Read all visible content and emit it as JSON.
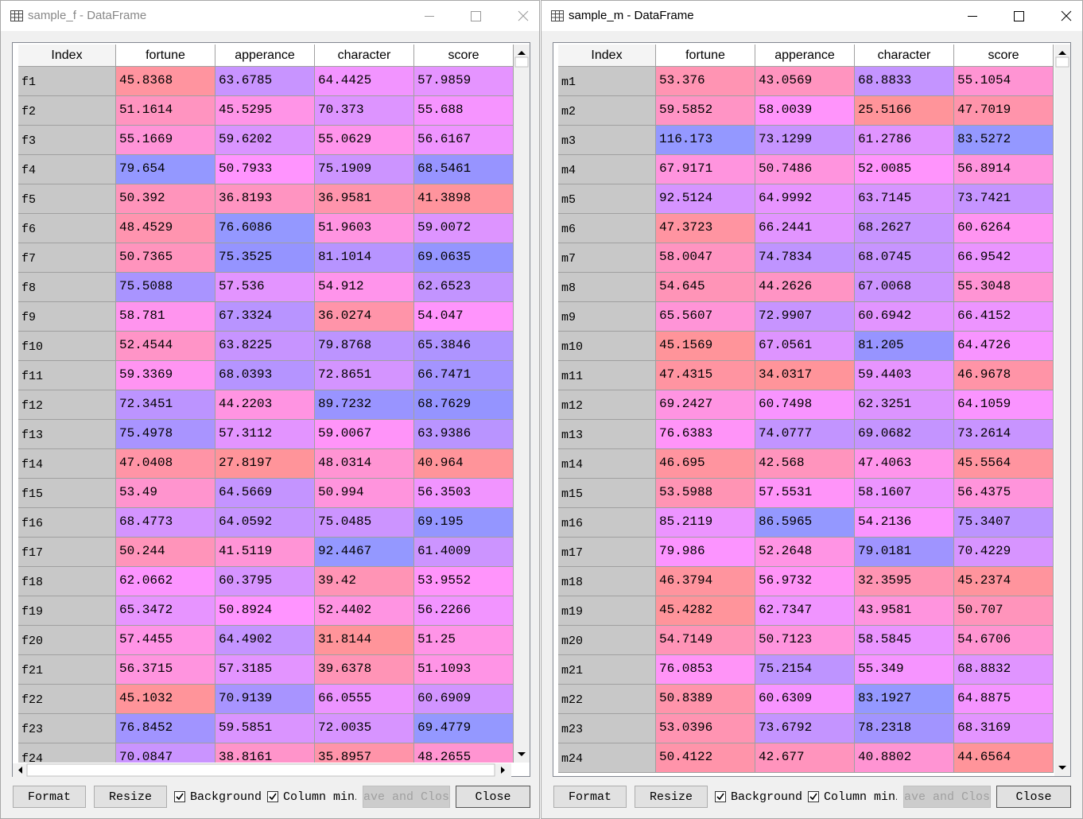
{
  "windows": [
    {
      "title": "sample_f - DataFrame",
      "columns": [
        "Index",
        "fortune",
        "apperance",
        "character",
        "score"
      ],
      "rows": [
        [
          "f1",
          45.8368,
          63.6785,
          64.4425,
          57.9859
        ],
        [
          "f2",
          51.1614,
          45.5295,
          70.373,
          55.688
        ],
        [
          "f3",
          55.1669,
          59.6202,
          55.0629,
          56.6167
        ],
        [
          "f4",
          79.654,
          50.7933,
          75.1909,
          68.5461
        ],
        [
          "f5",
          50.392,
          36.8193,
          36.9581,
          41.3898
        ],
        [
          "f6",
          48.4529,
          76.6086,
          51.9603,
          59.0072
        ],
        [
          "f7",
          50.7365,
          75.3525,
          81.1014,
          69.0635
        ],
        [
          "f8",
          75.5088,
          57.536,
          54.912,
          62.6523
        ],
        [
          "f9",
          58.781,
          67.3324,
          36.0274,
          54.047
        ],
        [
          "f10",
          52.4544,
          63.8225,
          79.8768,
          65.3846
        ],
        [
          "f11",
          59.3369,
          68.0393,
          72.8651,
          66.7471
        ],
        [
          "f12",
          72.3451,
          44.2203,
          89.7232,
          68.7629
        ],
        [
          "f13",
          75.4978,
          57.3112,
          59.0067,
          63.9386
        ],
        [
          "f14",
          47.0408,
          27.8197,
          48.0314,
          40.964
        ],
        [
          "f15",
          53.49,
          64.5669,
          50.994,
          56.3503
        ],
        [
          "f16",
          68.4773,
          64.0592,
          75.0485,
          69.195
        ],
        [
          "f17",
          50.244,
          41.5119,
          92.4467,
          61.4009
        ],
        [
          "f18",
          62.0662,
          60.3795,
          39.42,
          53.9552
        ],
        [
          "f19",
          65.3472,
          50.8924,
          52.4402,
          56.2266
        ],
        [
          "f20",
          57.4455,
          64.4902,
          31.8144,
          51.25
        ],
        [
          "f21",
          56.3715,
          57.3185,
          39.6378,
          51.1093
        ],
        [
          "f22",
          45.1032,
          70.9139,
          66.0555,
          60.6909
        ],
        [
          "f23",
          76.8452,
          59.5851,
          72.0035,
          69.4779
        ],
        [
          "f24",
          70.0847,
          38.8161,
          35.8957,
          48.2655
        ]
      ],
      "buttons": {
        "format": "Format",
        "resize": "Resize",
        "background": "Background",
        "column_minmax": "Column min/",
        "save_close": "Save and Close",
        "close": "Close"
      }
    },
    {
      "title": "sample_m - DataFrame",
      "columns": [
        "Index",
        "fortune",
        "apperance",
        "character",
        "score"
      ],
      "rows": [
        [
          "m1",
          53.376,
          43.0569,
          68.8833,
          55.1054
        ],
        [
          "m2",
          59.5852,
          58.0039,
          25.5166,
          47.7019
        ],
        [
          "m3",
          116.173,
          73.1299,
          61.2786,
          83.5272
        ],
        [
          "m4",
          67.9171,
          50.7486,
          52.0085,
          56.8914
        ],
        [
          "m5",
          92.5124,
          64.9992,
          63.7145,
          73.7421
        ],
        [
          "m6",
          47.3723,
          66.2441,
          68.2627,
          60.6264
        ],
        [
          "m7",
          58.0047,
          74.7834,
          68.0745,
          66.9542
        ],
        [
          "m8",
          54.645,
          44.2626,
          67.0068,
          55.3048
        ],
        [
          "m9",
          65.5607,
          72.9907,
          60.6942,
          66.4152
        ],
        [
          "m10",
          45.1569,
          67.0561,
          81.205,
          64.4726
        ],
        [
          "m11",
          47.4315,
          34.0317,
          59.4403,
          46.9678
        ],
        [
          "m12",
          69.2427,
          60.7498,
          62.3251,
          64.1059
        ],
        [
          "m13",
          76.6383,
          74.0777,
          69.0682,
          73.2614
        ],
        [
          "m14",
          46.695,
          42.568,
          47.4063,
          45.5564
        ],
        [
          "m15",
          53.5988,
          57.5531,
          58.1607,
          56.4375
        ],
        [
          "m16",
          85.2119,
          86.5965,
          54.2136,
          75.3407
        ],
        [
          "m17",
          79.986,
          52.2648,
          79.0181,
          70.4229
        ],
        [
          "m18",
          46.3794,
          56.9732,
          32.3595,
          45.2374
        ],
        [
          "m19",
          45.4282,
          62.7347,
          43.9581,
          50.707
        ],
        [
          "m20",
          54.7149,
          50.7123,
          58.5845,
          54.6706
        ],
        [
          "m21",
          76.0853,
          75.2154,
          55.349,
          68.8832
        ],
        [
          "m22",
          50.8389,
          60.6309,
          83.1927,
          64.8875
        ],
        [
          "m23",
          53.0396,
          73.6792,
          78.2318,
          68.3169
        ],
        [
          "m24",
          50.4122,
          42.677,
          40.8802,
          44.6564
        ]
      ],
      "buttons": {
        "format": "Format",
        "resize": "Resize",
        "background": "Background",
        "column_minmax": "Column min/",
        "save_close": "Save and Close",
        "close": "Close"
      }
    }
  ]
}
